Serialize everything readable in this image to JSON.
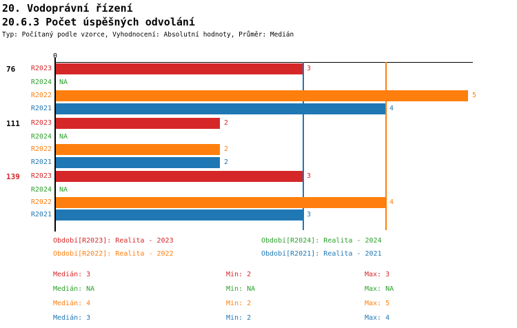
{
  "header": {
    "title": "20. Vodoprávní řízení",
    "subtitle": "20.6.3 Počet úspěšných odvolání",
    "meta": "Typ: Počítaný podle vzorce, Vyhodnocení: Absolutní hodnoty, Průměr: Medián"
  },
  "colors": {
    "red": "#d62728",
    "green": "#2ca02c",
    "orange": "#ff7f0e",
    "blue": "#1f77b4",
    "axis": "#000000",
    "highlight": "#d62728"
  },
  "chart_data": {
    "type": "bar",
    "orientation": "horizontal",
    "x_axis": {
      "origin_label": "0",
      "min": 0,
      "max": 5,
      "grid": false
    },
    "series": [
      {
        "id": "R2023",
        "label": "R2023",
        "color": "#d62728",
        "legend": "Období[R2023]: Realita - 2023",
        "median": "3",
        "min": "2",
        "max": "3"
      },
      {
        "id": "R2024",
        "label": "R2024",
        "color": "#2ca02c",
        "legend": "Období[R2024]: Realita - 2024",
        "median": "NA",
        "min": "NA",
        "max": "NA"
      },
      {
        "id": "R2022",
        "label": "R2022",
        "color": "#ff7f0e",
        "legend": "Období[R2022]: Realita - 2022",
        "median": "4",
        "min": "2",
        "max": "5"
      },
      {
        "id": "R2021",
        "label": "R2021",
        "color": "#1f77b4",
        "legend": "Období[R2021]: Realita - 2021",
        "median": "3",
        "min": "2",
        "max": "4"
      }
    ],
    "row_order": [
      "R2023",
      "R2024",
      "R2022",
      "R2021"
    ],
    "groups": [
      {
        "label": "76",
        "label_color": "#000000",
        "values": {
          "R2023": 3,
          "R2024": "NA",
          "R2022": 5,
          "R2021": 4
        }
      },
      {
        "label": "111",
        "label_color": "#000000",
        "values": {
          "R2023": 2,
          "R2024": "NA",
          "R2022": 2,
          "R2021": 2
        }
      },
      {
        "label": "139",
        "label_color": "#d62728",
        "values": {
          "R2023": 3,
          "R2024": "NA",
          "R2022": 4,
          "R2021": 3
        }
      }
    ],
    "median_lines": [
      {
        "series": "R2021",
        "value": 3,
        "color": "#1f77b4"
      },
      {
        "series": "R2022",
        "value": 4,
        "color": "#ff7f0e"
      }
    ],
    "na_text": "NA",
    "stats_labels": {
      "median": "Medián",
      "min": "Min",
      "max": "Max"
    }
  }
}
